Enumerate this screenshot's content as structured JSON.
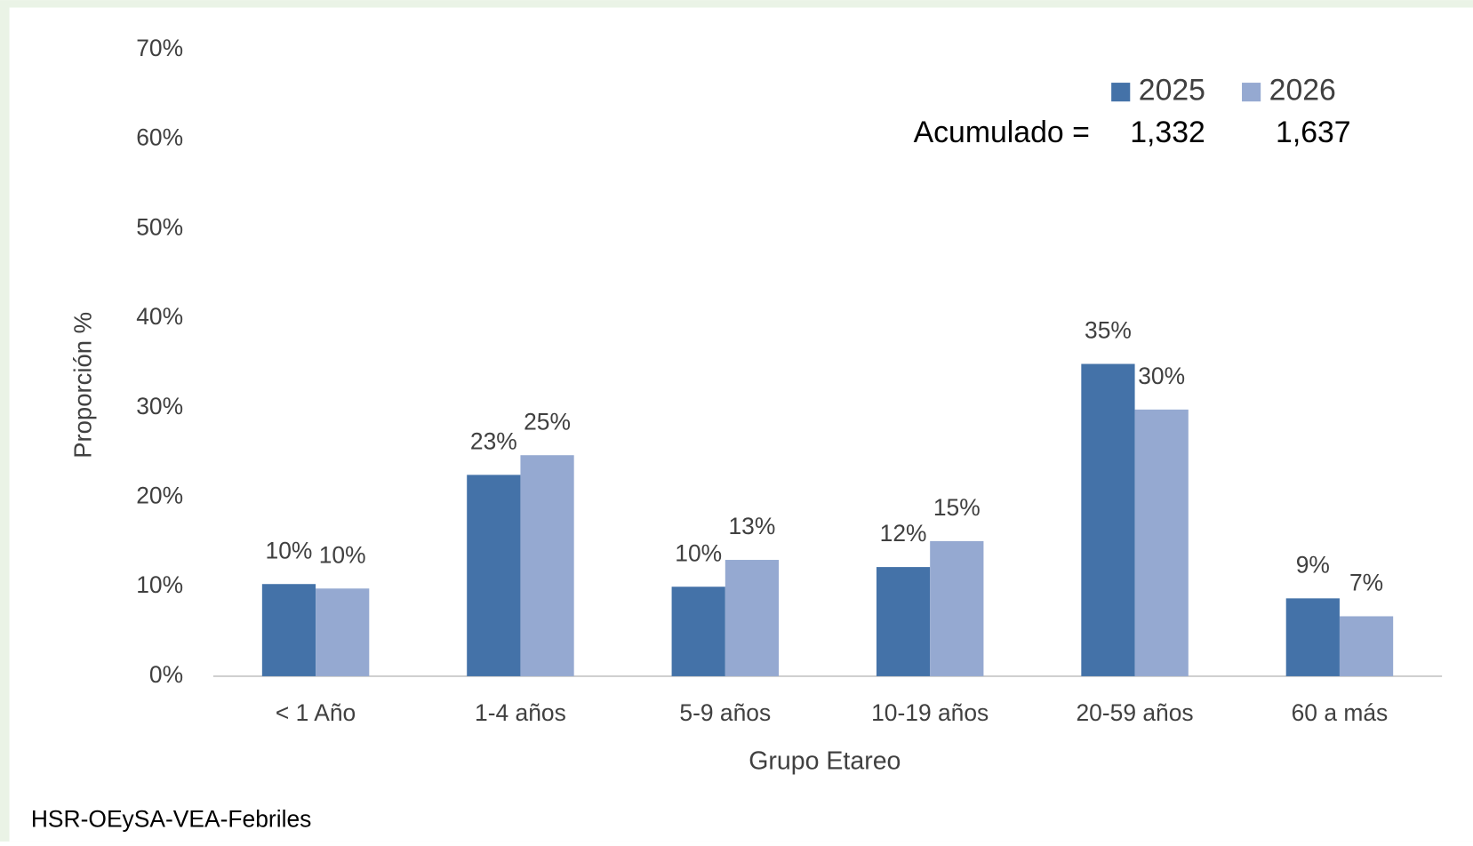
{
  "chart_data": {
    "type": "bar",
    "categories": [
      "< 1 Año",
      "1-4 años",
      "5-9 años",
      "10-19 años",
      "20-59 años",
      "60 a más"
    ],
    "series": [
      {
        "name": "2025",
        "color": "#4472a8",
        "values": [
          10.3,
          22.5,
          10.0,
          12.2,
          34.9,
          8.7
        ],
        "value_labels": [
          "10%",
          "23%",
          "10%",
          "12%",
          "35%",
          "9%"
        ]
      },
      {
        "name": "2026",
        "color": "#95a9d1",
        "values": [
          9.8,
          24.7,
          13.0,
          15.1,
          29.8,
          6.7
        ],
        "value_labels": [
          "10%",
          "25%",
          "13%",
          "15%",
          "30%",
          "7%"
        ]
      }
    ],
    "ylim": [
      0,
      70
    ],
    "yticks": [
      {
        "value": 0,
        "label": "0%"
      },
      {
        "value": 10,
        "label": "10%"
      },
      {
        "value": 20,
        "label": "20%"
      },
      {
        "value": 30,
        "label": "30%"
      },
      {
        "value": 40,
        "label": "40%"
      },
      {
        "value": 50,
        "label": "50%"
      },
      {
        "value": 60,
        "label": "60%"
      },
      {
        "value": 70,
        "label": "70%"
      }
    ],
    "ylabel": "Proporción %",
    "xlabel": "Grupo Etareo",
    "grid": false,
    "legend": "upper right",
    "annotation": {
      "label": "Acumulado =",
      "totals": [
        {
          "value": 1332,
          "label": "1,332"
        },
        {
          "value": 1637,
          "label": "1,637"
        }
      ]
    },
    "source": "HSR-OEySA-VEA-Febriles"
  }
}
